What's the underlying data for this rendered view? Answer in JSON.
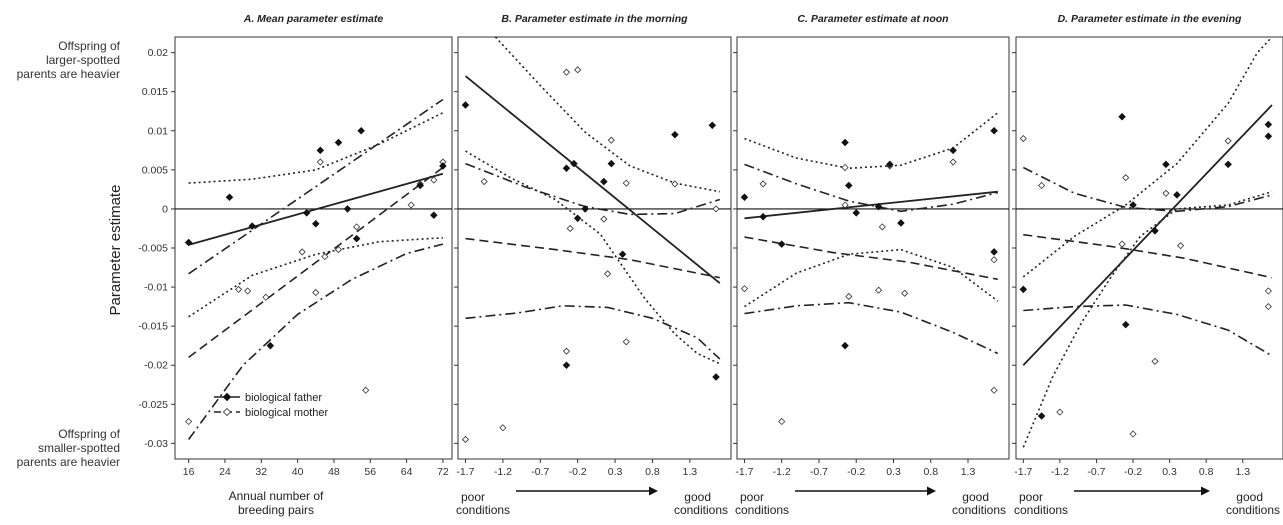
{
  "figure": {
    "y_axis_label": "Parameter estimate",
    "top_annotation": [
      "Offspring of",
      "larger-spotted",
      "parents are heavier"
    ],
    "bottom_annotation": [
      "Offspring of",
      "smaller-spotted",
      "parents are heavier"
    ],
    "legend": {
      "father": "biological father",
      "mother": "biological mother"
    },
    "colors": {
      "father": "#111111",
      "mother": "#ffffff",
      "lines": "#222222",
      "zero_line": "#111111"
    }
  },
  "chart_data": [
    {
      "id": "A",
      "type": "scatter",
      "title": "A. Mean parameter estimate",
      "xlabel": [
        "Annual number of",
        "breeding pairs"
      ],
      "xticks": [
        16,
        24,
        32,
        40,
        48,
        56,
        64,
        72
      ],
      "xlim": [
        13,
        74
      ],
      "ylim": [
        -0.032,
        0.022
      ],
      "yticks": [
        0.02,
        0.015,
        0.01,
        0.005,
        0,
        -0.005,
        -0.01,
        -0.015,
        -0.02,
        -0.025,
        -0.03
      ],
      "father_points": {
        "x": [
          16,
          25,
          30,
          34,
          42,
          44,
          45,
          49,
          51,
          53,
          54,
          67,
          70,
          72
        ],
        "y": [
          -0.0043,
          0.0015,
          -0.0022,
          -0.0175,
          -0.0005,
          -0.0019,
          0.0075,
          0.0085,
          0.0,
          -0.0038,
          0.01,
          0.003,
          -0.0008,
          0.0055
        ]
      },
      "mother_points": {
        "x": [
          16,
          27,
          29,
          33,
          41,
          44,
          45,
          46,
          49,
          53,
          55,
          65,
          67,
          70,
          72
        ],
        "y": [
          -0.0272,
          -0.0103,
          -0.0105,
          -0.0113,
          -0.0055,
          -0.0107,
          0.006,
          -0.0061,
          -0.0052,
          -0.0023,
          -0.0232,
          0.0005,
          0.0032,
          0.0037,
          0.006
        ]
      },
      "series": [
        {
          "name": "biological father",
          "style": "solid",
          "x": [
            16,
            72
          ],
          "y": [
            -0.0046,
            0.0045
          ]
        },
        {
          "name": "biological mother",
          "style": "dash",
          "x": [
            16,
            72
          ],
          "y": [
            -0.019,
            0.0053
          ]
        },
        {
          "style": "dashdot",
          "x": [
            16,
            72
          ],
          "y": [
            -0.0083,
            0.014
          ]
        },
        {
          "style": "dashdot",
          "x": [
            16,
            28,
            40,
            52,
            64,
            72
          ],
          "y": [
            -0.0295,
            -0.02,
            -0.0135,
            -0.009,
            -0.0057,
            -0.0045
          ]
        },
        {
          "style": "dot",
          "x": [
            16,
            30,
            44,
            58,
            72
          ],
          "y": [
            0.0033,
            0.0038,
            0.005,
            0.0083,
            0.0123
          ]
        },
        {
          "style": "dot",
          "x": [
            16,
            30,
            44,
            58,
            72
          ],
          "y": [
            -0.0138,
            -0.0085,
            -0.0058,
            -0.0042,
            -0.0037
          ]
        }
      ]
    },
    {
      "id": "B",
      "type": "scatter",
      "title": "B. Parameter estimate in the morning",
      "xlabel": [
        "poor",
        "conditions",
        "good",
        "conditions"
      ],
      "xticks": [
        -1.7,
        -1.2,
        -0.7,
        -0.2,
        0.3,
        0.8,
        1.3
      ],
      "xlim": [
        -1.8,
        1.85
      ],
      "ylim": [
        -0.032,
        0.022
      ],
      "father_points": {
        "x": [
          -1.7,
          -0.35,
          -0.25,
          -0.2,
          -0.1,
          0.15,
          0.25,
          0.4,
          1.1,
          1.6,
          -0.35,
          1.65
        ],
        "y": [
          0.0133,
          0.0052,
          0.0058,
          -0.0012,
          0.0,
          0.0035,
          0.0058,
          -0.0058,
          0.0095,
          0.0107,
          -0.02,
          -0.0215
        ]
      },
      "mother_points": {
        "x": [
          -1.7,
          -1.2,
          -1.45,
          -0.35,
          -0.2,
          -0.3,
          0.15,
          0.2,
          0.25,
          0.45,
          1.1,
          -0.35,
          0.45,
          1.65
        ],
        "y": [
          -0.0295,
          -0.028,
          0.0035,
          0.0175,
          0.0178,
          -0.0025,
          -0.0013,
          -0.0083,
          0.0088,
          0.0033,
          0.0032,
          -0.0182,
          -0.017,
          0.0
        ]
      },
      "series": [
        {
          "name": "biological father",
          "style": "solid",
          "x": [
            -1.7,
            1.7
          ],
          "y": [
            0.017,
            -0.0095
          ]
        },
        {
          "name": "biological mother",
          "style": "dash",
          "x": [
            -1.7,
            -0.5,
            0.5,
            1.7
          ],
          "y": [
            -0.0038,
            -0.0052,
            -0.0065,
            -0.0088
          ]
        },
        {
          "style": "dashdot",
          "x": [
            -1.7,
            -0.9,
            -0.1,
            0.5,
            1.1,
            1.7
          ],
          "y": [
            0.0058,
            0.0028,
            0.0003,
            -0.0007,
            -0.0006,
            0.0012
          ]
        },
        {
          "style": "dashdot",
          "x": [
            -1.7,
            -1.0,
            -0.4,
            0.2,
            0.8,
            1.4,
            1.7
          ],
          "y": [
            -0.014,
            -0.0133,
            -0.0124,
            -0.0126,
            -0.014,
            -0.0165,
            -0.0192
          ]
        },
        {
          "style": "dot",
          "x": [
            -1.3,
            -0.7,
            -0.1,
            0.5,
            1.1,
            1.7
          ],
          "y": [
            0.022,
            0.0158,
            0.0098,
            0.0055,
            0.0033,
            0.0022
          ]
        },
        {
          "style": "dot",
          "x": [
            -1.7,
            -1.1,
            -0.5,
            0.1,
            0.7,
            1.1,
            1.4,
            1.7
          ],
          "y": [
            0.0074,
            0.004,
            0.0012,
            -0.0032,
            -0.0115,
            -0.016,
            -0.0185,
            -0.0198
          ]
        }
      ]
    },
    {
      "id": "C",
      "type": "scatter",
      "title": "C. Parameter estimate at noon",
      "xlabel": [
        "poor",
        "conditions",
        "good",
        "conditions"
      ],
      "xticks": [
        -1.7,
        -1.2,
        -0.7,
        -0.2,
        0.3,
        0.8,
        1.3
      ],
      "xlim": [
        -1.8,
        1.85
      ],
      "ylim": [
        -0.032,
        0.022
      ],
      "father_points": {
        "x": [
          -1.7,
          -1.45,
          -1.2,
          -0.35,
          -0.3,
          -0.2,
          0.1,
          0.25,
          0.4,
          1.1,
          1.65,
          1.65,
          -0.35
        ],
        "y": [
          0.0015,
          -0.001,
          -0.0045,
          0.0085,
          0.003,
          -0.0005,
          0.0003,
          0.0057,
          -0.0018,
          0.0075,
          0.01,
          -0.0055,
          -0.0175
        ]
      },
      "mother_points": {
        "x": [
          -1.7,
          -1.45,
          -1.2,
          -0.35,
          -0.3,
          0.1,
          0.15,
          0.25,
          0.45,
          1.1,
          1.65,
          1.65,
          -0.35
        ],
        "y": [
          -0.0102,
          0.0032,
          -0.0272,
          0.0053,
          -0.0112,
          -0.0104,
          -0.0023,
          0.0055,
          -0.0108,
          0.006,
          -0.0065,
          -0.0232,
          0.0005
        ]
      },
      "series": [
        {
          "name": "biological father",
          "style": "solid",
          "x": [
            -1.7,
            1.7
          ],
          "y": [
            -0.0012,
            0.0022
          ]
        },
        {
          "name": "biological mother",
          "style": "dash",
          "x": [
            -1.7,
            -0.5,
            0.5,
            1.7
          ],
          "y": [
            -0.0036,
            -0.0056,
            -0.0068,
            -0.009
          ]
        },
        {
          "style": "dashdot",
          "x": [
            -1.7,
            -1.0,
            -0.3,
            0.4,
            1.1,
            1.7
          ],
          "y": [
            0.0057,
            0.0032,
            0.001,
            -0.0003,
            0.0006,
            0.0021
          ]
        },
        {
          "style": "dashdot",
          "x": [
            -1.7,
            -1.0,
            -0.3,
            0.4,
            1.1,
            1.7
          ],
          "y": [
            -0.0134,
            -0.0124,
            -0.012,
            -0.0132,
            -0.0158,
            -0.0185
          ]
        },
        {
          "style": "dot",
          "x": [
            -1.7,
            -1.0,
            -0.3,
            0.4,
            1.1,
            1.7
          ],
          "y": [
            0.009,
            0.0065,
            0.0052,
            0.0056,
            0.0078,
            0.0123
          ]
        },
        {
          "style": "dot",
          "x": [
            -1.7,
            -1.0,
            -0.3,
            0.4,
            1.1,
            1.7
          ],
          "y": [
            -0.0125,
            -0.0082,
            -0.0058,
            -0.0052,
            -0.0075,
            -0.0118
          ]
        }
      ]
    },
    {
      "id": "D",
      "type": "scatter",
      "title": "D. Parameter estimate in the evening",
      "xlabel": [
        "poor",
        "conditions",
        "good",
        "conditions"
      ],
      "xticks": [
        -1.7,
        -1.2,
        -0.7,
        -0.2,
        0.3,
        0.8,
        1.3
      ],
      "xlim": [
        -1.8,
        1.85
      ],
      "ylim": [
        -0.032,
        0.022
      ],
      "father_points": {
        "x": [
          -1.7,
          -1.45,
          -0.35,
          -0.3,
          -0.2,
          0.1,
          0.25,
          0.4,
          1.1,
          1.65,
          1.65
        ],
        "y": [
          -0.0103,
          -0.0265,
          0.0118,
          -0.0148,
          0.0005,
          -0.0028,
          0.0057,
          0.0018,
          0.0057,
          0.0108,
          0.0093
        ]
      },
      "mother_points": {
        "x": [
          -1.7,
          -1.45,
          -1.2,
          -0.35,
          -0.3,
          -0.2,
          0.1,
          0.25,
          0.45,
          1.1,
          1.65,
          1.65
        ],
        "y": [
          0.009,
          0.003,
          -0.026,
          -0.0045,
          0.004,
          -0.0288,
          -0.0195,
          0.002,
          -0.0047,
          0.0087,
          -0.0105,
          -0.0125
        ]
      },
      "series": [
        {
          "name": "biological father",
          "style": "solid",
          "x": [
            -1.7,
            1.7
          ],
          "y": [
            -0.02,
            0.0133
          ]
        },
        {
          "name": "biological mother",
          "style": "dash",
          "x": [
            -1.7,
            -0.5,
            0.5,
            1.7
          ],
          "y": [
            -0.0033,
            -0.0048,
            -0.0063,
            -0.0088
          ]
        },
        {
          "style": "dashdot",
          "x": [
            -1.7,
            -1.0,
            -0.3,
            0.4,
            1.1,
            1.7
          ],
          "y": [
            0.0053,
            0.002,
            0.0002,
            -0.0003,
            0.0003,
            0.0018
          ]
        },
        {
          "style": "dashdot",
          "x": [
            -1.7,
            -1.0,
            -0.3,
            0.4,
            1.1,
            1.7
          ],
          "y": [
            -0.013,
            -0.0125,
            -0.0123,
            -0.0135,
            -0.0155,
            -0.0188
          ]
        },
        {
          "style": "dot",
          "x": [
            -1.7,
            -1.0,
            -0.3,
            0.4,
            1.1,
            1.5,
            1.7
          ],
          "y": [
            -0.0087,
            -0.0035,
            0.0005,
            0.0058,
            0.0135,
            0.02,
            0.022
          ]
        },
        {
          "style": "dot",
          "x": [
            -1.7,
            -1.3,
            -0.9,
            -0.5,
            -0.1,
            0.4,
            1.1,
            1.7
          ],
          "y": [
            -0.0305,
            -0.0215,
            -0.0145,
            -0.0087,
            -0.0035,
            0.0,
            0.0005,
            0.0022
          ]
        }
      ]
    }
  ]
}
